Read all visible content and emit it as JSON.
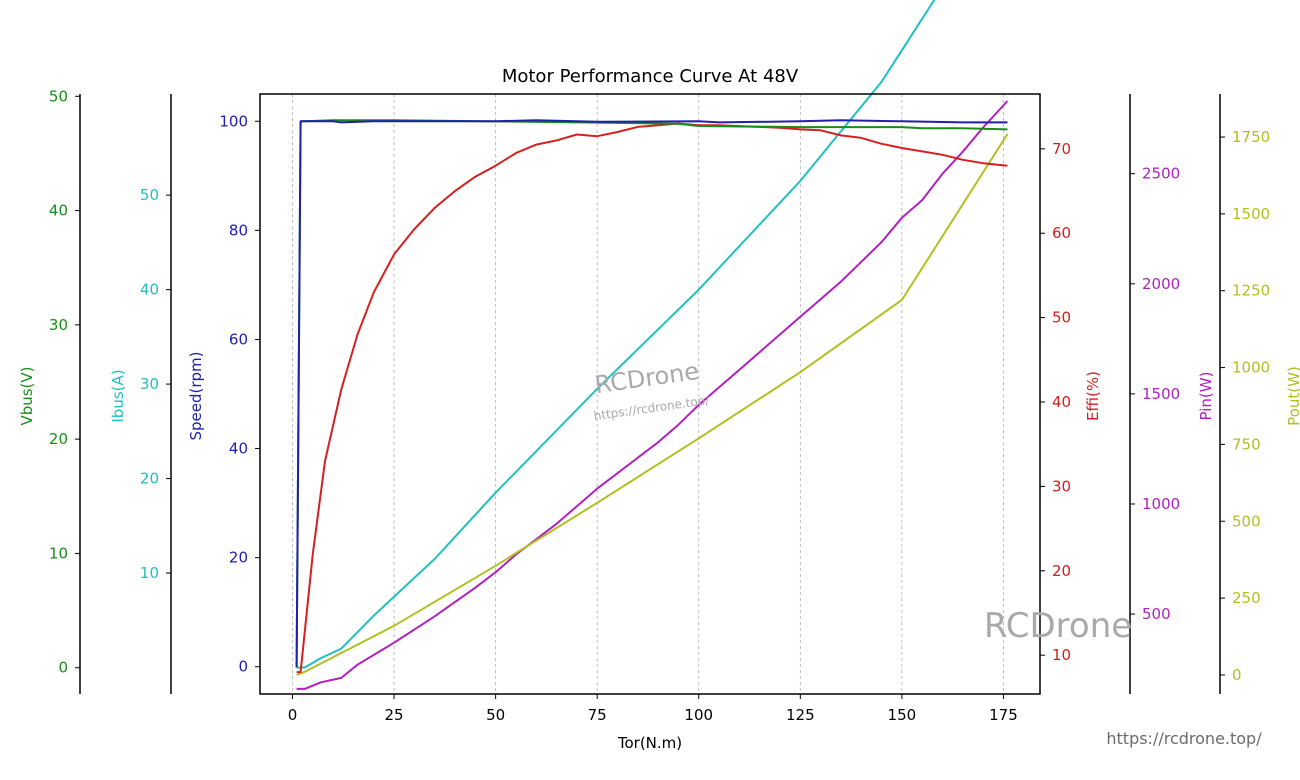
{
  "chart_data": {
    "type": "line",
    "title": "Motor Performance Curve At 48V",
    "xlabel": "Tor(N.m)",
    "xlim": [
      -8,
      184
    ],
    "xticks": [
      0,
      25,
      50,
      75,
      100,
      125,
      150,
      175
    ],
    "grid": "vertical dashed",
    "axes": [
      {
        "key": "vbus",
        "label": "Vbus(V)",
        "color": "#1a8c1a",
        "side": "left",
        "ylim": [
          -2.3,
          50.2
        ],
        "ticks": [
          0,
          10,
          20,
          30,
          40,
          50
        ]
      },
      {
        "key": "ibus",
        "label": "Ibus(A)",
        "color": "#20c0c0",
        "side": "left",
        "ylim": [
          -2.8,
          60.7
        ],
        "ticks": [
          10,
          20,
          30,
          40,
          50
        ]
      },
      {
        "key": "speed",
        "label": "Speed(rpm)",
        "color": "#2020b0",
        "side": "left",
        "ylim": [
          -5,
          105
        ],
        "ticks": [
          0,
          20,
          40,
          60,
          80,
          100
        ]
      },
      {
        "key": "eff",
        "label": "Effi(%)",
        "color": "#d42020",
        "side": "right",
        "ylim": [
          5.4,
          76.5
        ],
        "ticks": [
          10,
          20,
          30,
          40,
          50,
          60,
          70
        ]
      },
      {
        "key": "pin",
        "label": "Pin(W)",
        "color": "#b020c0",
        "side": "right",
        "ylim": [
          137,
          2862
        ],
        "ticks": [
          500,
          1000,
          1500,
          2000,
          2500
        ]
      },
      {
        "key": "pout",
        "label": "Pout(W)",
        "color": "#b0c020",
        "side": "right",
        "ylim": [
          -62,
          1890
        ],
        "ticks": [
          0,
          250,
          500,
          750,
          1000,
          1250,
          1500,
          1750
        ]
      }
    ],
    "series": [
      {
        "axis": "vbus",
        "color": "#1a8c1a",
        "x": [
          1,
          2,
          10,
          25,
          50,
          75,
          95,
          100,
          125,
          150,
          155,
          165,
          176
        ],
        "y": [
          0,
          47.8,
          47.9,
          47.9,
          47.8,
          47.7,
          47.6,
          47.4,
          47.3,
          47.3,
          47.2,
          47.2,
          47.1
        ]
      },
      {
        "axis": "ibus",
        "color": "#20c0c0",
        "x": [
          1,
          3,
          7,
          12,
          20,
          35,
          50,
          75,
          100,
          125,
          145,
          160,
          176
        ],
        "y": [
          0,
          0,
          1,
          2,
          5.5,
          11.5,
          18.5,
          29.5,
          40,
          51.5,
          62,
          72,
          83
        ]
      },
      {
        "axis": "speed",
        "color": "#2020b0",
        "x": [
          1,
          2,
          10,
          12,
          20,
          50,
          60,
          75,
          100,
          105,
          125,
          135,
          150,
          165,
          176
        ],
        "y": [
          0,
          100,
          100,
          99.8,
          100,
          100,
          100.2,
          99.9,
          100,
          99.8,
          100,
          100.2,
          100,
          99.8,
          99.8
        ]
      },
      {
        "axis": "eff",
        "color": "#d42020",
        "x": [
          1,
          2,
          5,
          8,
          12,
          16,
          20,
          25,
          30,
          35,
          40,
          45,
          50,
          55,
          60,
          65,
          70,
          75,
          80,
          85,
          90,
          95,
          100,
          105,
          110,
          115,
          120,
          125,
          130,
          135,
          140,
          145,
          150,
          155,
          160,
          165,
          170,
          176
        ],
        "y": [
          8,
          8,
          22,
          33,
          41.5,
          48,
          53,
          57.5,
          60.5,
          63,
          65,
          66.7,
          68,
          69.5,
          70.5,
          71,
          71.7,
          71.5,
          72,
          72.6,
          72.8,
          73,
          72.8,
          72.8,
          72.7,
          72.6,
          72.5,
          72.3,
          72.2,
          71.6,
          71.3,
          70.6,
          70.1,
          69.7,
          69.3,
          68.7,
          68.3,
          68
        ]
      },
      {
        "axis": "pin",
        "color": "#b020c0",
        "x": [
          1,
          3,
          7,
          12,
          16,
          25,
          35,
          45,
          50,
          55,
          60,
          65,
          70,
          75,
          80,
          85,
          90,
          95,
          100,
          105,
          110,
          115,
          120,
          125,
          130,
          135,
          140,
          145,
          150,
          155,
          160,
          165,
          170,
          176
        ],
        "y": [
          160,
          160,
          190,
          210,
          270,
          370,
          490,
          620,
          690,
          770,
          840,
          910,
          990,
          1070,
          1140,
          1210,
          1280,
          1360,
          1450,
          1530,
          1610,
          1690,
          1770,
          1850,
          1930,
          2010,
          2100,
          2190,
          2300,
          2380,
          2500,
          2600,
          2710,
          2830
        ]
      },
      {
        "axis": "pout",
        "color": "#b0c020",
        "x": [
          1,
          3,
          25,
          50,
          75,
          100,
          125,
          150,
          176
        ],
        "y": [
          0,
          10,
          160,
          355,
          560,
          770,
          985,
          1220,
          1760
        ]
      }
    ],
    "watermarks": [
      "RCDrone",
      "https://rcdrone.top/"
    ]
  },
  "footer": {
    "watermark_big": "RCDrone",
    "url": "https://rcdrone.top/"
  }
}
